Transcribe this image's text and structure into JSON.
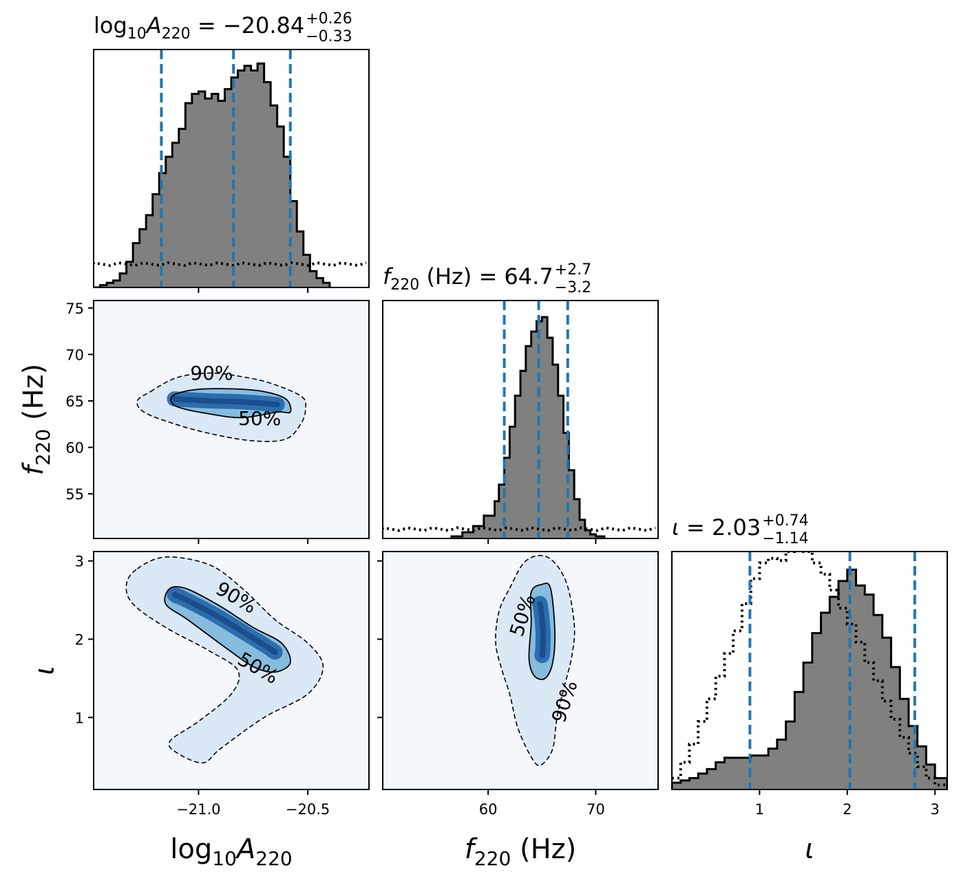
{
  "chart_data": [
    {
      "type": "histogram",
      "panel": "A_marginal",
      "title": {
        "main": "log10A220 = −20.84",
        "display_base": "log",
        "display_sub": "10",
        "display_var": "A",
        "display_var_sub": "220",
        "display_value": " = −20.84",
        "plus": "+0.26",
        "minus": "−0.33"
      },
      "xlim": [
        -21.48,
        -20.22
      ],
      "quantiles": [
        -21.17,
        -20.84,
        -20.58
      ],
      "hist_edges": [
        -21.48,
        -21.45,
        -21.42,
        -21.39,
        -21.36,
        -21.33,
        -21.3,
        -21.27,
        -21.24,
        -21.21,
        -21.18,
        -21.15,
        -21.12,
        -21.09,
        -21.06,
        -21.03,
        -21.0,
        -20.97,
        -20.94,
        -20.91,
        -20.88,
        -20.85,
        -20.82,
        -20.79,
        -20.76,
        -20.73,
        -20.7,
        -20.67,
        -20.64,
        -20.61,
        -20.58,
        -20.55,
        -20.52,
        -20.49,
        -20.46,
        -20.43,
        -20.4
      ],
      "hist_counts": [
        0.0,
        0.01,
        0.02,
        0.03,
        0.06,
        0.11,
        0.19,
        0.25,
        0.31,
        0.4,
        0.49,
        0.56,
        0.62,
        0.68,
        0.79,
        0.83,
        0.84,
        0.81,
        0.83,
        0.8,
        0.85,
        0.9,
        0.93,
        0.95,
        0.93,
        0.96,
        0.88,
        0.78,
        0.69,
        0.56,
        0.37,
        0.24,
        0.14,
        0.07,
        0.04,
        0.02
      ],
      "prior_level": 0.1
    },
    {
      "type": "histogram",
      "panel": "f_marginal",
      "title": {
        "display_var": "f",
        "display_var_sub": "220",
        "display_value": " (Hz) = 64.7",
        "plus": "+2.7",
        "minus": "−3.2"
      },
      "xlim": [
        50.2,
        75.8
      ],
      "quantiles": [
        61.5,
        64.7,
        67.4
      ],
      "hist_edges": [
        56.6,
        57.6,
        58.6,
        59.6,
        60.6,
        61.0,
        61.5,
        62.0,
        62.5,
        63.0,
        63.5,
        64.0,
        64.5,
        65.0,
        65.5,
        66.0,
        66.5,
        67.0,
        67.5,
        68.0,
        68.5,
        69.0,
        69.5,
        70.0,
        70.8
      ],
      "hist_counts": [
        0.01,
        0.03,
        0.06,
        0.11,
        0.18,
        0.26,
        0.39,
        0.54,
        0.69,
        0.81,
        0.93,
        1.0,
        1.05,
        1.07,
        0.97,
        0.84,
        0.69,
        0.51,
        0.33,
        0.19,
        0.09,
        0.04,
        0.02,
        0.01
      ],
      "prior_level": 0.045
    },
    {
      "type": "histogram",
      "panel": "iota_marginal",
      "title": {
        "display_var": "ι",
        "display_value": " = 2.03",
        "plus": "+0.74",
        "minus": "−1.14"
      },
      "xlim": [
        0.0,
        3.14
      ],
      "xticks": [
        1,
        2,
        3
      ],
      "xlabel": "ι",
      "quantiles": [
        0.89,
        2.03,
        2.77
      ],
      "hist_edges": [
        0.0,
        0.1,
        0.2,
        0.3,
        0.4,
        0.5,
        0.6,
        0.7,
        0.8,
        0.9,
        1.0,
        1.1,
        1.2,
        1.3,
        1.4,
        1.5,
        1.6,
        1.7,
        1.8,
        1.9,
        2.0,
        2.1,
        2.2,
        2.3,
        2.4,
        2.5,
        2.6,
        2.7,
        2.8,
        2.9,
        3.0,
        3.14
      ],
      "hist_counts": [
        0.03,
        0.04,
        0.05,
        0.07,
        0.09,
        0.12,
        0.14,
        0.14,
        0.14,
        0.15,
        0.15,
        0.18,
        0.22,
        0.3,
        0.43,
        0.56,
        0.69,
        0.78,
        0.85,
        0.92,
        0.97,
        0.9,
        0.86,
        0.77,
        0.67,
        0.54,
        0.4,
        0.28,
        0.19,
        0.11,
        0.05
      ],
      "prior_counts": [
        0.05,
        0.12,
        0.2,
        0.3,
        0.4,
        0.5,
        0.6,
        0.7,
        0.82,
        0.93,
        1.0,
        1.02,
        1.01,
        1.05,
        1.09,
        1.05,
        1.0,
        0.95,
        0.88,
        0.8,
        0.73,
        0.65,
        0.56,
        0.48,
        0.39,
        0.31,
        0.23,
        0.16,
        0.1,
        0.05,
        0.02
      ]
    },
    {
      "type": "heatmap",
      "panel": "A_vs_f",
      "xlim": [
        -21.48,
        -20.22
      ],
      "ylim": [
        50.2,
        75.8
      ],
      "ylabel": "f220 (Hz)",
      "yticks": [
        55,
        60,
        65,
        70,
        75
      ],
      "colormap": "Blues",
      "contour_labels": [
        "90%",
        "50%"
      ],
      "contour_90": [
        [
          -21.22,
          66.0
        ],
        [
          -21.1,
          67.5
        ],
        [
          -20.95,
          68.0
        ],
        [
          -20.8,
          67.6
        ],
        [
          -20.67,
          66.9
        ],
        [
          -20.53,
          65.5
        ],
        [
          -20.51,
          64.2
        ],
        [
          -20.53,
          62.6
        ],
        [
          -20.6,
          60.9
        ],
        [
          -20.75,
          60.7
        ],
        [
          -20.95,
          61.5
        ],
        [
          -21.12,
          62.6
        ],
        [
          -21.25,
          63.8
        ],
        [
          -21.28,
          65.0
        ]
      ],
      "contour_50": [
        [
          -21.12,
          65.5
        ],
        [
          -21.02,
          66.2
        ],
        [
          -20.85,
          66.3
        ],
        [
          -20.7,
          66.0
        ],
        [
          -20.6,
          65.2
        ],
        [
          -20.58,
          63.8
        ],
        [
          -20.64,
          63.8
        ],
        [
          -20.8,
          63.2
        ],
        [
          -20.95,
          63.6
        ],
        [
          -21.1,
          64.4
        ]
      ],
      "density_ridge": [
        [
          -21.1,
          65.2
        ],
        [
          -20.95,
          65.0
        ],
        [
          -20.8,
          64.9
        ],
        [
          -20.65,
          64.6
        ]
      ]
    },
    {
      "type": "heatmap",
      "panel": "A_vs_iota",
      "xlim": [
        -21.48,
        -20.22
      ],
      "ylim": [
        0.08,
        3.12
      ],
      "xlabel": "log10A220",
      "xticks": [
        -21.0,
        -20.5
      ],
      "xtick_labels": [
        "−21.0",
        "−20.5"
      ],
      "ylabel": "ι",
      "yticks": [
        1,
        2,
        3
      ],
      "colormap": "Blues",
      "contour_labels": [
        "90%",
        "50%"
      ],
      "contour_90": [
        [
          -21.28,
          2.9
        ],
        [
          -21.15,
          3.05
        ],
        [
          -20.95,
          2.95
        ],
        [
          -20.8,
          2.65
        ],
        [
          -20.65,
          2.25
        ],
        [
          -20.5,
          1.95
        ],
        [
          -20.43,
          1.65
        ],
        [
          -20.5,
          1.3
        ],
        [
          -20.7,
          1.0
        ],
        [
          -20.9,
          0.6
        ],
        [
          -20.98,
          0.42
        ],
        [
          -21.1,
          0.55
        ],
        [
          -21.13,
          0.7
        ],
        [
          -21.0,
          0.95
        ],
        [
          -20.85,
          1.3
        ],
        [
          -20.82,
          1.6
        ],
        [
          -20.95,
          1.85
        ],
        [
          -21.15,
          2.15
        ],
        [
          -21.3,
          2.45
        ],
        [
          -21.33,
          2.7
        ]
      ],
      "contour_50": [
        [
          -21.13,
          2.65
        ],
        [
          -21.05,
          2.64
        ],
        [
          -20.9,
          2.42
        ],
        [
          -20.75,
          2.15
        ],
        [
          -20.62,
          1.95
        ],
        [
          -20.58,
          1.7
        ],
        [
          -20.65,
          1.58
        ],
        [
          -20.75,
          1.65
        ],
        [
          -20.88,
          1.9
        ],
        [
          -21.05,
          2.25
        ],
        [
          -21.15,
          2.45
        ]
      ],
      "density_ridge": [
        [
          -21.1,
          2.55
        ],
        [
          -20.95,
          2.35
        ],
        [
          -20.8,
          2.1
        ],
        [
          -20.66,
          1.85
        ]
      ]
    },
    {
      "type": "heatmap",
      "panel": "f_vs_iota",
      "xlim": [
        50.2,
        75.8
      ],
      "ylim": [
        0.08,
        3.12
      ],
      "xlabel": "f220 (Hz)",
      "xticks": [
        60,
        70
      ],
      "colormap": "Blues",
      "contour_labels": [
        "50%",
        "90%"
      ],
      "contour_90": [
        [
          62.0,
          2.65
        ],
        [
          63.5,
          3.0
        ],
        [
          65.5,
          3.05
        ],
        [
          67.2,
          2.75
        ],
        [
          68.0,
          2.2
        ],
        [
          67.8,
          1.8
        ],
        [
          67.0,
          1.35
        ],
        [
          66.4,
          1.0
        ],
        [
          66.0,
          0.6
        ],
        [
          65.0,
          0.4
        ],
        [
          64.2,
          0.45
        ],
        [
          62.8,
          0.85
        ],
        [
          62.0,
          1.3
        ],
        [
          61.3,
          1.6
        ],
        [
          60.7,
          1.95
        ],
        [
          61.0,
          2.35
        ]
      ],
      "contour_50": [
        [
          64.0,
          2.6
        ],
        [
          65.0,
          2.7
        ],
        [
          65.8,
          2.65
        ],
        [
          66.2,
          2.1
        ],
        [
          66.0,
          1.7
        ],
        [
          65.3,
          1.5
        ],
        [
          64.3,
          1.53
        ],
        [
          63.8,
          1.75
        ],
        [
          64.0,
          2.2
        ]
      ],
      "density_ridge": [
        [
          64.8,
          2.45
        ],
        [
          65.1,
          2.1
        ],
        [
          65.0,
          1.8
        ]
      ]
    }
  ]
}
